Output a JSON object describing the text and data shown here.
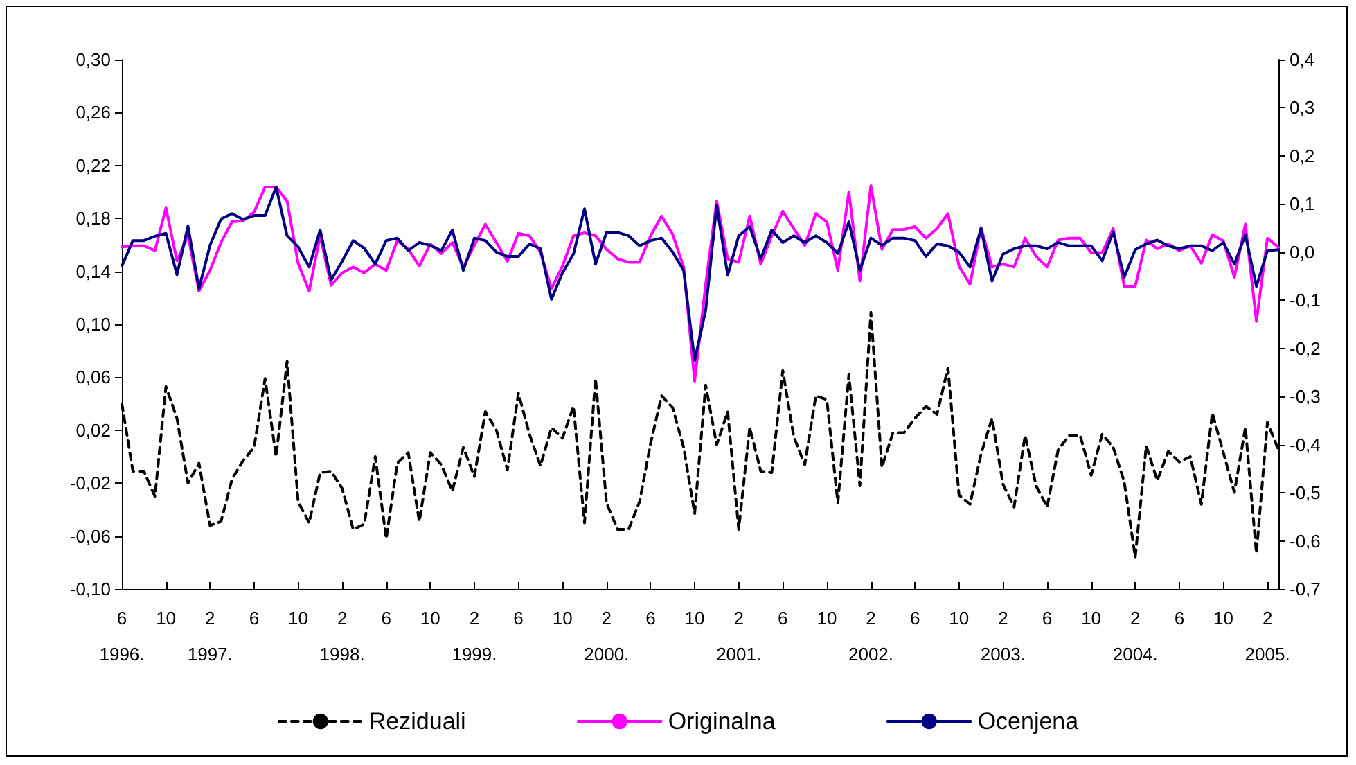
{
  "chart_data": {
    "type": "line",
    "categories": [
      "6\n1996.",
      null,
      null,
      null,
      "10",
      null,
      null,
      null,
      "2\n1997.",
      null,
      null,
      null,
      "6",
      null,
      null,
      null,
      "10",
      null,
      null,
      null,
      "2\n1998.",
      null,
      null,
      null,
      "6",
      null,
      null,
      null,
      "10",
      null,
      null,
      null,
      "2\n1999.",
      null,
      null,
      null,
      "6",
      null,
      null,
      null,
      "10",
      null,
      null,
      null,
      "2\n2000.",
      null,
      null,
      null,
      "6",
      null,
      null,
      null,
      "10",
      null,
      null,
      null,
      "2\n2001.",
      null,
      null,
      null,
      "6",
      null,
      null,
      null,
      "10",
      null,
      null,
      null,
      "2\n2002.",
      null,
      null,
      null,
      "6",
      null,
      null,
      null,
      "10",
      null,
      null,
      null,
      "2\n2003.",
      null,
      null,
      null,
      "6",
      null,
      null,
      null,
      "10",
      null,
      null,
      null,
      "2\n2004.",
      null,
      null,
      null,
      "6",
      null,
      null,
      null,
      "10",
      null,
      null,
      null,
      "2\n2005.",
      null
    ],
    "series": [
      {
        "name": "Reziduali",
        "color": "#000000",
        "line_style": "dashed",
        "values": [
          0.04,
          -0.011,
          -0.011,
          -0.03,
          0.053,
          0.029,
          -0.02,
          -0.005,
          -0.052,
          -0.049,
          -0.017,
          -0.003,
          0.007,
          0.059,
          0.0,
          0.072,
          -0.034,
          -0.05,
          -0.012,
          -0.011,
          -0.024,
          -0.055,
          -0.051,
          0.0,
          -0.062,
          -0.005,
          0.003,
          -0.049,
          0.003,
          -0.006,
          -0.026,
          0.007,
          -0.015,
          0.034,
          0.02,
          -0.01,
          0.048,
          0.017,
          -0.007,
          0.022,
          0.014,
          0.038,
          -0.05,
          0.059,
          -0.035,
          -0.055,
          -0.055,
          -0.034,
          0.01,
          0.046,
          0.037,
          0.007,
          -0.043,
          0.054,
          0.009,
          0.034,
          -0.055,
          0.022,
          -0.011,
          -0.012,
          0.065,
          0.015,
          -0.006,
          0.046,
          0.043,
          -0.035,
          0.062,
          -0.022,
          0.109,
          -0.008,
          0.018,
          0.018,
          0.029,
          0.038,
          0.032,
          0.067,
          -0.029,
          -0.036,
          0.002,
          0.029,
          -0.021,
          -0.038,
          0.016,
          -0.022,
          -0.038,
          0.005,
          0.016,
          0.016,
          -0.014,
          0.017,
          0.007,
          -0.019,
          -0.076,
          0.008,
          -0.018,
          0.004,
          -0.004,
          0.0,
          -0.036,
          0.033,
          0.003,
          -0.027,
          0.022,
          -0.073,
          0.026,
          0.005
        ]
      },
      {
        "name": "Originalna",
        "color": "#ff00ff",
        "axis": "y2",
        "values": [
          0.011,
          0.013,
          0.013,
          0.003,
          0.092,
          -0.018,
          0.034,
          -0.081,
          -0.038,
          0.02,
          0.063,
          0.065,
          0.083,
          0.135,
          0.135,
          0.106,
          -0.023,
          -0.081,
          0.034,
          -0.069,
          -0.043,
          -0.031,
          -0.043,
          -0.025,
          -0.038,
          0.024,
          0.006,
          -0.029,
          0.017,
          -0.003,
          0.02,
          -0.031,
          0.014,
          0.058,
          0.02,
          -0.019,
          0.039,
          0.034,
          0.0,
          -0.076,
          -0.029,
          0.034,
          0.04,
          0.034,
          0.006,
          -0.014,
          -0.021,
          -0.021,
          0.034,
          0.075,
          0.037,
          -0.031,
          -0.268,
          -0.067,
          0.106,
          -0.014,
          -0.021,
          0.075,
          -0.025,
          0.034,
          0.085,
          0.049,
          0.014,
          0.08,
          0.063,
          -0.038,
          0.125,
          -0.06,
          0.138,
          0.006,
          0.047,
          0.047,
          0.053,
          0.029,
          0.049,
          0.08,
          -0.029,
          -0.067,
          0.051,
          -0.031,
          -0.025,
          -0.031,
          0.029,
          -0.009,
          -0.031,
          0.025,
          0.029,
          0.029,
          -0.001,
          -0.001,
          0.049,
          -0.071,
          -0.071,
          0.025,
          0.007,
          0.017,
          0.003,
          0.013,
          -0.023,
          0.036,
          0.023,
          -0.052,
          0.058,
          -0.144,
          0.029,
          0.01
        ]
      },
      {
        "name": "Ocenjena",
        "color": "#000080",
        "axis": "y2",
        "values": [
          -0.029,
          0.024,
          0.024,
          0.033,
          0.039,
          -0.047,
          0.054,
          -0.076,
          0.014,
          0.069,
          0.08,
          0.068,
          0.076,
          0.076,
          0.135,
          0.034,
          0.011,
          -0.031,
          0.046,
          -0.058,
          -0.019,
          0.024,
          0.008,
          -0.025,
          0.024,
          0.029,
          0.003,
          0.02,
          0.014,
          0.003,
          0.046,
          -0.038,
          0.029,
          0.024,
          0.0,
          -0.009,
          -0.009,
          0.017,
          0.007,
          -0.098,
          -0.043,
          -0.004,
          0.09,
          -0.025,
          0.041,
          0.041,
          0.034,
          0.013,
          0.024,
          0.029,
          0.0,
          -0.038,
          -0.225,
          -0.121,
          0.097,
          -0.048,
          0.034,
          0.053,
          -0.014,
          0.046,
          0.02,
          0.034,
          0.02,
          0.034,
          0.02,
          -0.003,
          0.063,
          -0.038,
          0.029,
          0.014,
          0.029,
          0.029,
          0.024,
          -0.009,
          0.017,
          0.013,
          0.0,
          -0.031,
          0.049,
          -0.06,
          -0.004,
          0.007,
          0.013,
          0.013,
          0.007,
          0.02,
          0.013,
          0.013,
          0.013,
          -0.018,
          0.042,
          -0.052,
          0.005,
          0.017,
          0.025,
          0.013,
          0.007,
          0.013,
          0.013,
          0.003,
          0.02,
          -0.025,
          0.036,
          -0.071,
          0.003,
          0.005
        ]
      }
    ],
    "ylim": [
      -0.1,
      0.3
    ],
    "yticks": [
      {
        "value": -0.1,
        "label": "-0,10"
      },
      {
        "value": -0.06,
        "label": "-0,06"
      },
      {
        "value": -0.02,
        "label": "-0,02"
      },
      {
        "value": 0.02,
        "label": "0,02"
      },
      {
        "value": 0.06,
        "label": "0,06"
      },
      {
        "value": 0.1,
        "label": "0,10"
      },
      {
        "value": 0.14,
        "label": "0,14"
      },
      {
        "value": 0.18,
        "label": "0,18"
      },
      {
        "value": 0.22,
        "label": "0,22"
      },
      {
        "value": 0.26,
        "label": "0,26"
      },
      {
        "value": 0.3,
        "label": "0,30"
      }
    ],
    "y2lim": [
      -0.7,
      0.4
    ],
    "y2ticks": [
      {
        "value": -0.7,
        "label": "-0,7"
      },
      {
        "value": -0.6,
        "label": "-0,6"
      },
      {
        "value": -0.5,
        "label": "-0,5"
      },
      {
        "value": -0.4,
        "label": "-0,4"
      },
      {
        "value": -0.3,
        "label": "-0,3"
      },
      {
        "value": -0.2,
        "label": "-0,2"
      },
      {
        "value": -0.1,
        "label": "-0,1"
      },
      {
        "value": 0.0,
        "label": "0,0"
      },
      {
        "value": 0.1,
        "label": "0,1"
      },
      {
        "value": 0.2,
        "label": "0,2"
      },
      {
        "value": 0.3,
        "label": "0,3"
      },
      {
        "value": 0.4,
        "label": "0,4"
      }
    ],
    "legend": "bottom",
    "marker": "none"
  }
}
